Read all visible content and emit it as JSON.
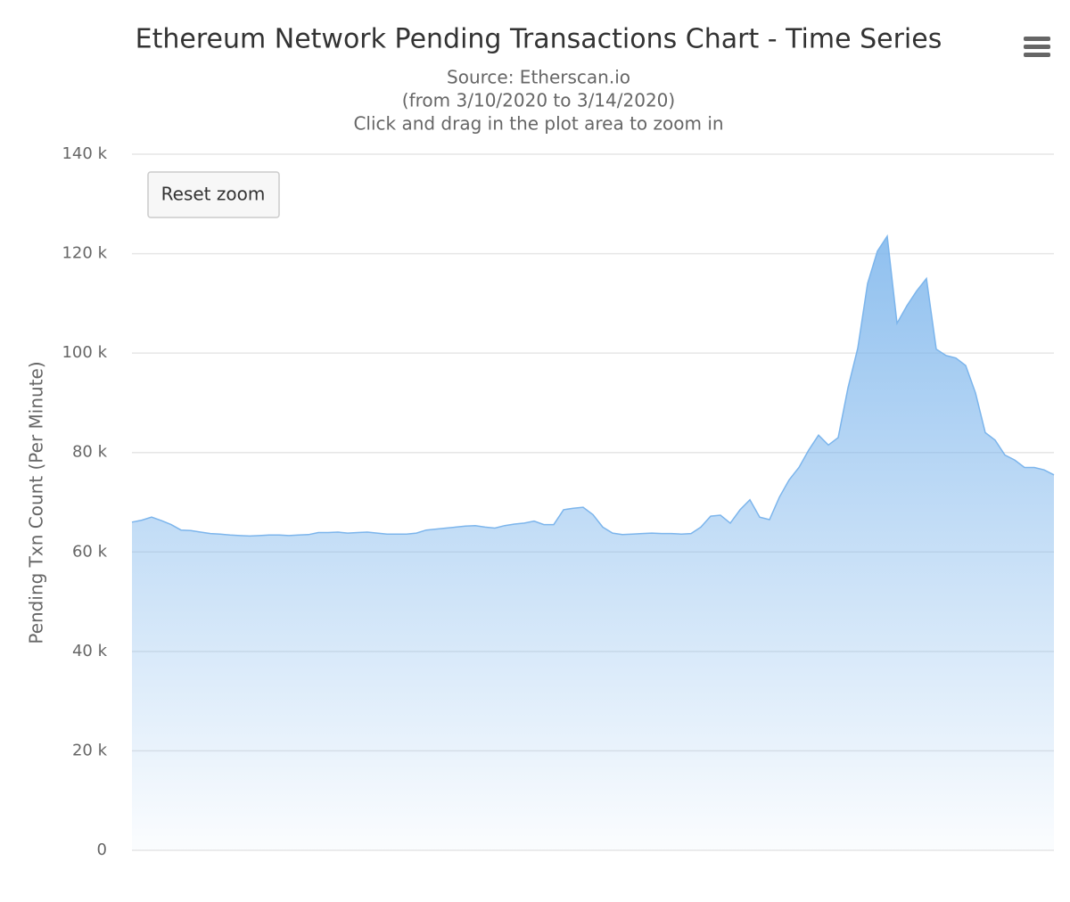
{
  "chart_data": {
    "type": "area",
    "title": "Ethereum Network Pending Transactions Chart - Time Series",
    "subtitle": [
      "Source: Etherscan.io",
      "(from 3/10/2020 to 3/14/2020)",
      "Click and drag in the plot area to zoom in"
    ],
    "y_axis_label": "Pending Txn Count (Per Minute)",
    "reset_button": "Reset zoom",
    "color": "#7cb5ec",
    "grid": true,
    "ylim": [
      0,
      140000
    ],
    "yticks": [
      0,
      {
        "value": 20000,
        "label": "20 k"
      },
      {
        "value": 40000,
        "label": "40 k"
      },
      {
        "value": 60000,
        "label": "60 k"
      },
      {
        "value": 80000,
        "label": "80 k"
      },
      {
        "value": 100000,
        "label": "100 k"
      },
      {
        "value": 120000,
        "label": "120 k"
      },
      {
        "value": 140000,
        "label": "140 k"
      }
    ],
    "values": [
      66000,
      66400,
      67000,
      66300,
      65500,
      64400,
      64300,
      64000,
      63700,
      63600,
      63400,
      63300,
      63200,
      63300,
      63400,
      63400,
      63300,
      63400,
      63500,
      63900,
      63900,
      64000,
      63800,
      63900,
      64000,
      63800,
      63600,
      63600,
      63600,
      63800,
      64400,
      64600,
      64800,
      65000,
      65200,
      65300,
      65000,
      64800,
      65300,
      65600,
      65800,
      66200,
      65500,
      65500,
      68500,
      68800,
      69000,
      67500,
      65000,
      63800,
      63500,
      63600,
      63700,
      63800,
      63700,
      63700,
      63600,
      63700,
      65000,
      67200,
      67400,
      65800,
      68500,
      70500,
      67000,
      66500,
      71000,
      74500,
      77000,
      80500,
      83500,
      81500,
      83000,
      93000,
      101000,
      114000,
      120500,
      123500,
      106000,
      109500,
      112500,
      115000,
      100800,
      99500,
      99000,
      97500,
      92000,
      84000,
      82500,
      79500,
      78500,
      77000,
      77000,
      76500,
      75500
    ]
  }
}
